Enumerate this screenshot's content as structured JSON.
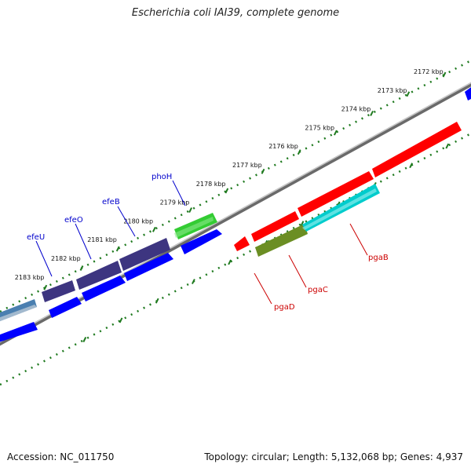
{
  "title": "Escherichia coli IAI39, complete genome",
  "footer": {
    "accession": "Accession: NC_011750",
    "topology": "Topology: circular; Length: 5,132,068 bp; Genes: 4,937"
  },
  "kbp_ticks": [
    "2172 kbp",
    "2173 kbp",
    "2174 kbp",
    "2175 kbp",
    "2176 kbp",
    "2177 kbp",
    "2178 kbp",
    "2179 kbp",
    "2180 kbp",
    "2181 kbp",
    "2182 kbp",
    "2183 kbp"
  ],
  "genes_top": [
    "phoH",
    "efeB",
    "efeO",
    "efeU"
  ],
  "genes_bottom": [
    "pgaB",
    "pgaC",
    "pgaD"
  ],
  "colors": {
    "ruler": "#1f7a1f",
    "backbone": "#808080",
    "label_top": "#0000cc",
    "label_bottom": "#cc0000",
    "cds_blue": "#0000ff",
    "efe_purple": "#3d3580",
    "phoH_green": "#33cc33",
    "pga_red": "#ff0000",
    "pgaC_olive": "#6b8e23",
    "pga_cyan": "#00cccc"
  }
}
